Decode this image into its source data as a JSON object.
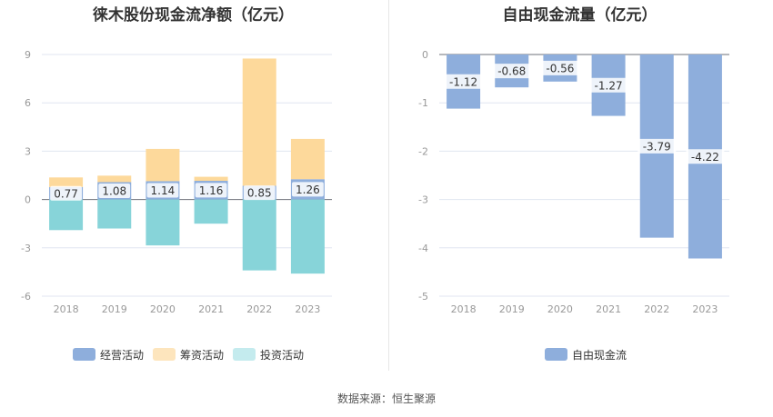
{
  "source": "数据来源：恒生聚源",
  "chart_data": [
    {
      "type": "bar",
      "stacked": true,
      "title": "徕木股份现金流净额（亿元）",
      "categories": [
        "2018",
        "2019",
        "2020",
        "2021",
        "2022",
        "2023"
      ],
      "ylim": [
        -6,
        9
      ],
      "yticks": [
        9,
        6,
        3,
        0,
        -3,
        -6
      ],
      "series": [
        {
          "name": "经营活动",
          "color": "#8eaedc",
          "values": [
            0.77,
            1.08,
            1.14,
            1.16,
            0.85,
            1.26
          ],
          "labels": [
            "0.77",
            "1.08",
            "1.14",
            "1.16",
            "0.85",
            "1.26"
          ]
        },
        {
          "name": "筹资活动",
          "color": "#fdd99b",
          "values": [
            0.6,
            0.4,
            2.0,
            0.25,
            7.9,
            2.5
          ]
        },
        {
          "name": "投资活动",
          "color": "#87d4d9",
          "values": [
            -1.9,
            -1.8,
            -2.85,
            -1.5,
            -4.4,
            -4.6
          ]
        }
      ],
      "legend": [
        {
          "name": "经营活动",
          "color": "#8eaedc"
        },
        {
          "name": "筹资活动",
          "color": "#fde5bd"
        },
        {
          "name": "投资活动",
          "color": "#c4ebee"
        }
      ]
    },
    {
      "type": "bar",
      "title": "自由现金流量（亿元）",
      "categories": [
        "2018",
        "2019",
        "2020",
        "2021",
        "2022",
        "2023"
      ],
      "ylim": [
        -5,
        0
      ],
      "yticks": [
        0,
        -1,
        -2,
        -3,
        -4,
        -5
      ],
      "series": [
        {
          "name": "自由现金流",
          "color": "#8eaedc",
          "values": [
            -1.12,
            -0.68,
            -0.56,
            -1.27,
            -3.79,
            -4.22
          ],
          "labels": [
            "-1.12",
            "-0.68",
            "-0.56",
            "-1.27",
            "-3.79",
            "-4.22"
          ]
        }
      ],
      "legend": [
        {
          "name": "自由现金流",
          "color": "#8eaedc"
        }
      ]
    }
  ]
}
